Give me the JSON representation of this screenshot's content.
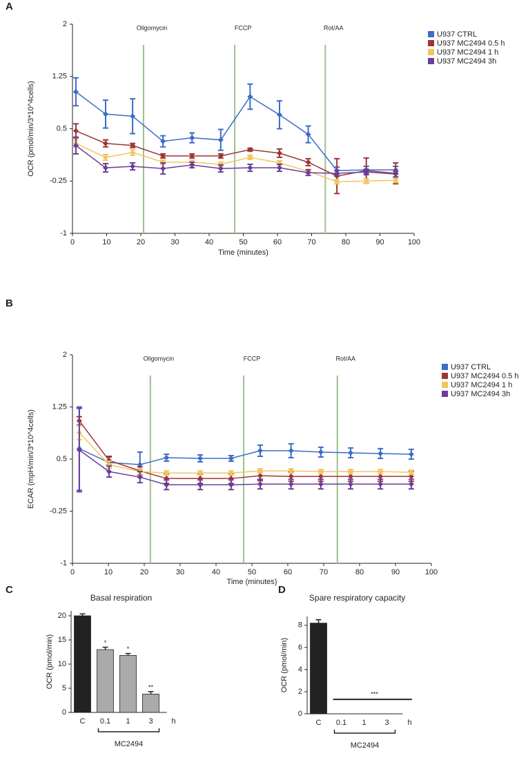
{
  "chart_data": [
    {
      "type": "line",
      "panel": "A",
      "ylabel": "OCR (pmol/min/3*10^4cells)",
      "xlabel": "Time (minutes)",
      "xlim": [
        0,
        100
      ],
      "xticks": [
        0,
        10,
        20,
        30,
        40,
        50,
        60,
        70,
        80,
        90,
        100
      ],
      "ylim": [
        -1,
        2
      ],
      "yticks": [
        -1,
        -0.25,
        0.5,
        1.25,
        2
      ],
      "events": [
        {
          "label": "Oligomycin",
          "x": 20.8
        },
        {
          "label": "FCCP",
          "x": 47.5
        },
        {
          "label": "Rot/AA",
          "x": 74
        }
      ],
      "x": [
        1,
        9.7,
        17.6,
        26.5,
        35,
        43.4,
        52,
        60.6,
        69,
        77.4,
        86,
        94.6
      ],
      "series": [
        {
          "name": "U937 CTRL",
          "color": "#3b6cc6",
          "values": [
            1.03,
            0.71,
            0.68,
            0.32,
            0.37,
            0.34,
            0.96,
            0.7,
            0.42,
            -0.1,
            -0.09,
            -0.09
          ],
          "errors": [
            0.2,
            0.2,
            0.25,
            0.08,
            0.07,
            0.15,
            0.18,
            0.2,
            0.12,
            0.05,
            0.05,
            0.05
          ]
        },
        {
          "name": "U937 MC2494 0.5 h",
          "color": "#9e3434",
          "values": [
            0.47,
            0.29,
            0.26,
            0.11,
            0.11,
            0.11,
            0.2,
            0.15,
            0.02,
            -0.18,
            -0.1,
            -0.14
          ],
          "errors": [
            0.1,
            0.05,
            0.03,
            0.03,
            0.03,
            0.03,
            0.02,
            0.06,
            0.05,
            0.25,
            0.18,
            0.15
          ]
        },
        {
          "name": "U937 MC2494 1 h",
          "color": "#f2c560",
          "values": [
            0.29,
            0.09,
            0.16,
            0.02,
            0.02,
            -0.01,
            0.09,
            0.01,
            -0.11,
            -0.26,
            -0.25,
            -0.24
          ],
          "errors": [
            0.05,
            0.04,
            0.04,
            0.03,
            0.03,
            0.03,
            0.03,
            0.03,
            0.03,
            0.03,
            0.03,
            0.03
          ]
        },
        {
          "name": "U937 MC2494 3h",
          "color": "#6a3d9a",
          "values": [
            0.26,
            -0.06,
            -0.04,
            -0.07,
            -0.02,
            -0.07,
            -0.06,
            -0.06,
            -0.13,
            -0.14,
            -0.12,
            -0.15
          ],
          "errors": [
            0.12,
            0.06,
            0.05,
            0.08,
            0.04,
            0.05,
            0.05,
            0.05,
            0.04,
            0.04,
            0.04,
            0.04
          ]
        }
      ],
      "legend": "upper right"
    },
    {
      "type": "line",
      "panel": "B",
      "ylabel": "ECAR (mpH/min/3*10^4cells)",
      "xlabel": "Time (minutes)",
      "xlim": [
        0,
        100
      ],
      "xticks": [
        0,
        10,
        20,
        30,
        40,
        50,
        60,
        70,
        80,
        90,
        100
      ],
      "ylim": [
        -1,
        2
      ],
      "yticks": [
        -1,
        -0.25,
        0.5,
        1.25,
        2
      ],
      "events": [
        {
          "label": "Oligomycin",
          "x": 21.7
        },
        {
          "label": "FCCP",
          "x": 47.7
        },
        {
          "label": "Rot/AA",
          "x": 73.8
        }
      ],
      "x": [
        1.9,
        10.2,
        18.8,
        26.2,
        35.6,
        44.2,
        52.3,
        60.9,
        69.2,
        77.5,
        85.8,
        94.4
      ],
      "series": [
        {
          "name": "U937 CTRL",
          "color": "#3b6cc6",
          "values": [
            0.65,
            0.45,
            0.42,
            0.52,
            0.51,
            0.51,
            0.62,
            0.62,
            0.6,
            0.59,
            0.58,
            0.57
          ],
          "errors": [
            0.6,
            0.08,
            0.18,
            0.05,
            0.05,
            0.04,
            0.08,
            0.1,
            0.07,
            0.07,
            0.07,
            0.07
          ]
        },
        {
          "name": "U937 MC2494 0.5 h",
          "color": "#9e3434",
          "values": [
            1.05,
            0.48,
            0.33,
            0.22,
            0.22,
            0.22,
            0.26,
            0.25,
            0.25,
            0.25,
            0.25,
            0.25
          ],
          "errors": [
            0.06,
            0.06,
            0.06,
            0.07,
            0.07,
            0.07,
            0.07,
            0.07,
            0.07,
            0.07,
            0.07,
            0.07
          ]
        },
        {
          "name": "U937 MC2494 1 h",
          "color": "#f2c560",
          "values": [
            0.88,
            0.42,
            0.32,
            0.3,
            0.3,
            0.3,
            0.33,
            0.33,
            0.32,
            0.32,
            0.32,
            0.31
          ],
          "errors": [
            0.1,
            0.05,
            0.04,
            0.03,
            0.03,
            0.03,
            0.03,
            0.03,
            0.03,
            0.03,
            0.03,
            0.03
          ]
        },
        {
          "name": "U937 MC2494 3h",
          "color": "#6a3d9a",
          "values": [
            0.63,
            0.32,
            0.24,
            0.13,
            0.13,
            0.13,
            0.14,
            0.14,
            0.14,
            0.14,
            0.14,
            0.14
          ],
          "errors": [
            0.6,
            0.08,
            0.08,
            0.07,
            0.07,
            0.07,
            0.07,
            0.07,
            0.07,
            0.07,
            0.07,
            0.07
          ]
        }
      ],
      "legend": "upper right"
    },
    {
      "type": "bar",
      "panel": "C",
      "title": "Basal respiration",
      "ylabel": "OCR (pmol/min)",
      "categories": [
        "C",
        "0.1",
        "1",
        "3"
      ],
      "values": [
        20,
        13,
        11.8,
        3.8
      ],
      "errors": [
        0.4,
        0.5,
        0.4,
        0.5
      ],
      "colors": [
        "#222222",
        "#aaaaaa",
        "#aaaaaa",
        "#aaaaaa"
      ],
      "value_annotations": [
        null,
        "*",
        "*",
        "**"
      ],
      "unit_label": "h",
      "group_label": "MC2494",
      "ylim": [
        0,
        21
      ],
      "yticks": [
        0,
        5,
        10,
        15,
        20
      ]
    },
    {
      "type": "bar",
      "panel": "D",
      "title": "Spare respiratory capacity",
      "ylabel": "OCR (pmol/min)",
      "categories": [
        "C",
        "0.1",
        "1",
        "3"
      ],
      "values": [
        8.2,
        null,
        null,
        null
      ],
      "errors": [
        0.3,
        null,
        null,
        null
      ],
      "colors": [
        "#222222",
        "#aaaaaa",
        "#aaaaaa",
        "#aaaaaa"
      ],
      "line_value": 1.3,
      "line_annotation": "***",
      "unit_label": "h",
      "group_label": "MC2494",
      "ylim": [
        0,
        8.8
      ],
      "yticks": [
        0,
        2,
        4,
        6,
        8
      ]
    }
  ]
}
